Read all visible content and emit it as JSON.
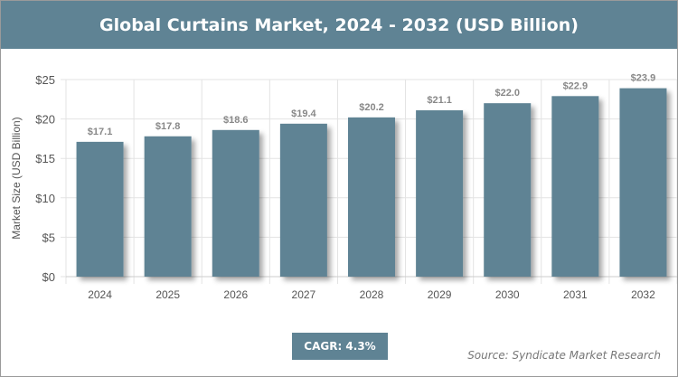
{
  "chart_data": {
    "type": "bar",
    "title": "Global Curtains Market, 2024 - 2032 (USD Billion)",
    "xlabel": "",
    "ylabel": "Market Size (USD Billion)",
    "categories": [
      "2024",
      "2025",
      "2026",
      "2027",
      "2028",
      "2029",
      "2030",
      "2031",
      "2032"
    ],
    "values": [
      17.1,
      17.8,
      18.6,
      19.4,
      20.2,
      21.1,
      22.0,
      22.9,
      23.9
    ],
    "data_labels": [
      "$17.1",
      "$17.8",
      "$18.6",
      "$19.4",
      "$20.2",
      "$21.1",
      "$22.0",
      "$22.9",
      "$23.9"
    ],
    "ylim": [
      0,
      25
    ],
    "yticks": [
      0,
      5,
      10,
      15,
      20,
      25
    ],
    "ytick_labels": [
      "$0",
      "$5",
      "$10",
      "$15",
      "$20",
      "$25"
    ],
    "grid": true,
    "bar_color": "#5f8394"
  },
  "cagr": "CAGR: 4.3%",
  "source": "Source: Syndicate Market Research"
}
